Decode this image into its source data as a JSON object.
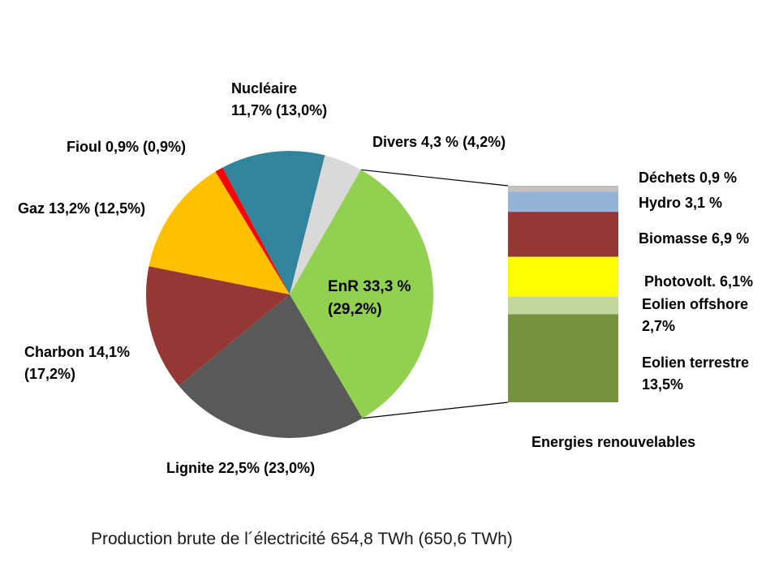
{
  "chart_data": {
    "type": "pie",
    "variant": "bar-of-pie",
    "title": "Production brute de l´électricité 654,8 TWh (650,6 TWh)",
    "unit": "%",
    "pie_rotation_deg": -27.9,
    "pie_slices": [
      {
        "name": "Nucléaire",
        "value": 11.7,
        "paren_value": 13.0,
        "color": "#31849B"
      },
      {
        "name": "Divers",
        "value": 4.3,
        "paren_value": 4.2,
        "color": "#D9D9D9"
      },
      {
        "name": "EnR",
        "value": 33.3,
        "paren_value": 29.2,
        "color": "#92D050"
      },
      {
        "name": "Lignite",
        "value": 22.5,
        "paren_value": 23.0,
        "color": "#595959"
      },
      {
        "name": "Charbon",
        "value": 14.1,
        "paren_value": 17.2,
        "color": "#953735"
      },
      {
        "name": "Gaz",
        "value": 13.2,
        "paren_value": 12.5,
        "color": "#FFC000"
      },
      {
        "name": "Fioul",
        "value": 0.9,
        "paren_value": 0.9,
        "color": "#FF0000"
      }
    ],
    "bar_title": "Energies renouvelables",
    "bar_segments_top_to_bottom": [
      {
        "name": "Déchets",
        "value": 0.9,
        "color": "#C4C0BA"
      },
      {
        "name": "Hydro",
        "value": 3.1,
        "color": "#95B3D7"
      },
      {
        "name": "Biomasse",
        "value": 6.9,
        "color": "#953735"
      },
      {
        "name": "Photovolt.",
        "value": 6.1,
        "color": "#FFFF00"
      },
      {
        "name": "Eolien offshore",
        "value": 2.7,
        "color": "#C3D69B"
      },
      {
        "name": "Eolien terrestre",
        "value": 13.5,
        "color": "#76923C"
      }
    ],
    "legend_position": "callout-labels",
    "grid": false
  },
  "labels": {
    "nucleaire": "Nucléaire\n11,7% (13,0%)",
    "divers": "Divers 4,3 % (4,2%)",
    "fioul": "Fioul 0,9% (0,9%)",
    "gaz": "Gaz 13,2% (12,5%)",
    "charbon": "Charbon 14,1%\n(17,2%)",
    "lignite": "Lignite 22,5% (23,0%)",
    "enr": "EnR 33,3 %\n(29,2%)",
    "dechets": "Déchets 0,9 %",
    "hydro": "Hydro  3,1 %",
    "biomasse": "Biomasse 6,9 %",
    "photovolt": "Photovolt.  6,1%",
    "eolien_offshore": "Eolien offshore\n2,7%",
    "eolien_terrestre": "Eolien terrestre\n 13,5%",
    "energies_renouvelables": "Energies renouvelables",
    "caption": "Production brute de l´électricité 654,8 TWh (650,6 TWh)"
  },
  "colors": {
    "background": "#FFFFFF",
    "connector_line": "#000000",
    "text": "#000000"
  }
}
